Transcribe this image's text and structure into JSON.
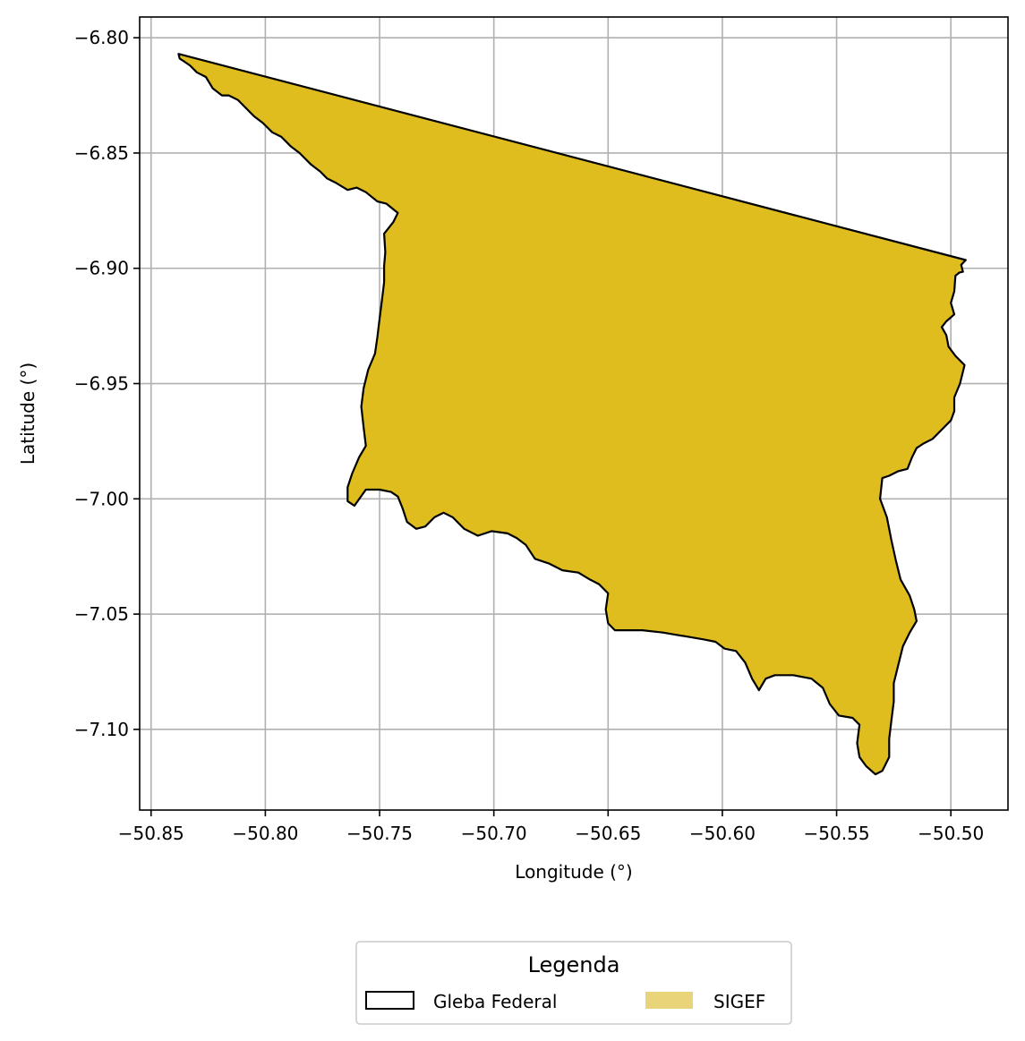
{
  "chart_data": {
    "type": "map",
    "title": "",
    "xlabel": "Longitude (°)",
    "ylabel": "Latitude (°)",
    "xlim": [
      -50.855,
      -50.475
    ],
    "ylim": [
      -7.135,
      -6.791
    ],
    "grid": true,
    "xticks": [
      -50.85,
      -50.8,
      -50.75,
      -50.7,
      -50.65,
      -50.6,
      -50.55,
      -50.5
    ],
    "xtick_labels": [
      "−50.85",
      "−50.80",
      "−50.75",
      "−50.70",
      "−50.65",
      "−50.60",
      "−50.55",
      "−50.50"
    ],
    "yticks": [
      -6.8,
      -6.85,
      -6.9,
      -6.95,
      -7.0,
      -7.05,
      -7.1
    ],
    "ytick_labels": [
      "−6.80",
      "−6.85",
      "−6.90",
      "−6.95",
      "−7.00",
      "−7.05",
      "−7.10"
    ],
    "legend": {
      "title": "Legenda",
      "placement": "bottom-center",
      "entries": [
        {
          "label": "Gleba Federal",
          "style": "outline",
          "edge_color": "#000000"
        },
        {
          "label": "SIGEF",
          "style": "fill",
          "fill_color": "#e9d479"
        }
      ]
    },
    "colors": {
      "sigef_fill": "#dfbd1f",
      "edge": "#000000",
      "grid": "#b0b0b0"
    },
    "polygon": [
      [
        -50.838,
        -6.807
      ],
      [
        -50.4935,
        -6.8964
      ],
      [
        -50.4955,
        -6.8985
      ],
      [
        -50.4947,
        -6.9015
      ],
      [
        -50.4962,
        -6.9018
      ],
      [
        -50.498,
        -6.9032
      ],
      [
        -50.4985,
        -6.91
      ],
      [
        -50.5,
        -6.915
      ],
      [
        -50.4985,
        -6.92
      ],
      [
        -50.502,
        -6.923
      ],
      [
        -50.504,
        -6.9255
      ],
      [
        -50.502,
        -6.929
      ],
      [
        -50.501,
        -6.934
      ],
      [
        -50.498,
        -6.938
      ],
      [
        -50.494,
        -6.942
      ],
      [
        -50.496,
        -6.95
      ],
      [
        -50.4985,
        -6.956
      ],
      [
        -50.4985,
        -6.962
      ],
      [
        -50.5,
        -6.966
      ],
      [
        -50.504,
        -6.97
      ],
      [
        -50.508,
        -6.974
      ],
      [
        -50.512,
        -6.976
      ],
      [
        -50.515,
        -6.978
      ],
      [
        -50.517,
        -6.982
      ],
      [
        -50.519,
        -6.987
      ],
      [
        -50.523,
        -6.988
      ],
      [
        -50.527,
        -6.99
      ],
      [
        -50.53,
        -6.991
      ],
      [
        -50.531,
        -7.0
      ],
      [
        -50.528,
        -7.008
      ],
      [
        -50.526,
        -7.018
      ],
      [
        -50.524,
        -7.027
      ],
      [
        -50.522,
        -7.035
      ],
      [
        -50.518,
        -7.042
      ],
      [
        -50.516,
        -7.048
      ],
      [
        -50.515,
        -7.053
      ],
      [
        -50.518,
        -7.058
      ],
      [
        -50.521,
        -7.064
      ],
      [
        -50.523,
        -7.072
      ],
      [
        -50.525,
        -7.08
      ],
      [
        -50.525,
        -7.088
      ],
      [
        -50.526,
        -7.096
      ],
      [
        -50.527,
        -7.104
      ],
      [
        -50.527,
        -7.112
      ],
      [
        -50.53,
        -7.118
      ],
      [
        -50.533,
        -7.1195
      ],
      [
        -50.537,
        -7.116
      ],
      [
        -50.54,
        -7.112
      ],
      [
        -50.541,
        -7.106
      ],
      [
        -50.54,
        -7.098
      ],
      [
        -50.543,
        -7.095
      ],
      [
        -50.549,
        -7.094
      ],
      [
        -50.553,
        -7.089
      ],
      [
        -50.556,
        -7.082
      ],
      [
        -50.561,
        -7.078
      ],
      [
        -50.569,
        -7.0765
      ],
      [
        -50.577,
        -7.0765
      ],
      [
        -50.581,
        -7.078
      ],
      [
        -50.584,
        -7.083
      ],
      [
        -50.587,
        -7.078
      ],
      [
        -50.59,
        -7.071
      ],
      [
        -50.594,
        -7.066
      ],
      [
        -50.599,
        -7.065
      ],
      [
        -50.603,
        -7.062
      ],
      [
        -50.608,
        -7.061
      ],
      [
        -50.614,
        -7.06
      ],
      [
        -50.62,
        -7.059
      ],
      [
        -50.626,
        -7.058
      ],
      [
        -50.635,
        -7.057
      ],
      [
        -50.643,
        -7.057
      ],
      [
        -50.647,
        -7.057
      ],
      [
        -50.65,
        -7.054
      ],
      [
        -50.651,
        -7.048
      ],
      [
        -50.65,
        -7.041
      ],
      [
        -50.654,
        -7.037
      ],
      [
        -50.658,
        -7.035
      ],
      [
        -50.663,
        -7.032
      ],
      [
        -50.67,
        -7.031
      ],
      [
        -50.676,
        -7.028
      ],
      [
        -50.682,
        -7.026
      ],
      [
        -50.686,
        -7.02
      ],
      [
        -50.69,
        -7.017
      ],
      [
        -50.694,
        -7.015
      ],
      [
        -50.701,
        -7.014
      ],
      [
        -50.707,
        -7.016
      ],
      [
        -50.713,
        -7.013
      ],
      [
        -50.718,
        -7.008
      ],
      [
        -50.722,
        -7.006
      ],
      [
        -50.726,
        -7.008
      ],
      [
        -50.73,
        -7.012
      ],
      [
        -50.734,
        -7.013
      ],
      [
        -50.738,
        -7.01
      ],
      [
        -50.74,
        -7.004
      ],
      [
        -50.742,
        -6.999
      ],
      [
        -50.745,
        -6.997
      ],
      [
        -50.75,
        -6.996
      ],
      [
        -50.756,
        -6.996
      ],
      [
        -50.761,
        -7.003
      ],
      [
        -50.764,
        -7.001
      ],
      [
        -50.764,
        -6.995
      ],
      [
        -50.762,
        -6.989
      ],
      [
        -50.759,
        -6.982
      ],
      [
        -50.756,
        -6.977
      ],
      [
        -50.757,
        -6.969
      ],
      [
        -50.758,
        -6.96
      ],
      [
        -50.757,
        -6.952
      ],
      [
        -50.755,
        -6.944
      ],
      [
        -50.752,
        -6.937
      ],
      [
        -50.751,
        -6.93
      ],
      [
        -50.75,
        -6.922
      ],
      [
        -50.749,
        -6.914
      ],
      [
        -50.748,
        -6.906
      ],
      [
        -50.748,
        -6.899
      ],
      [
        -50.7475,
        -6.893
      ],
      [
        -50.748,
        -6.885
      ],
      [
        -50.744,
        -6.88
      ],
      [
        -50.742,
        -6.876
      ],
      [
        -50.747,
        -6.872
      ],
      [
        -50.751,
        -6.871
      ],
      [
        -50.756,
        -6.867
      ],
      [
        -50.76,
        -6.865
      ],
      [
        -50.764,
        -6.866
      ],
      [
        -50.769,
        -6.863
      ],
      [
        -50.773,
        -6.861
      ],
      [
        -50.776,
        -6.858
      ],
      [
        -50.78,
        -6.855
      ],
      [
        -50.785,
        -6.85
      ],
      [
        -50.789,
        -6.847
      ],
      [
        -50.793,
        -6.843
      ],
      [
        -50.797,
        -6.841
      ],
      [
        -50.801,
        -6.837
      ],
      [
        -50.805,
        -6.834
      ],
      [
        -50.809,
        -6.83
      ],
      [
        -50.812,
        -6.827
      ],
      [
        -50.816,
        -6.825
      ],
      [
        -50.819,
        -6.825
      ],
      [
        -50.823,
        -6.822
      ],
      [
        -50.826,
        -6.817
      ],
      [
        -50.83,
        -6.815
      ],
      [
        -50.833,
        -6.812
      ],
      [
        -50.836,
        -6.81
      ],
      [
        -50.8375,
        -6.809
      ]
    ]
  }
}
